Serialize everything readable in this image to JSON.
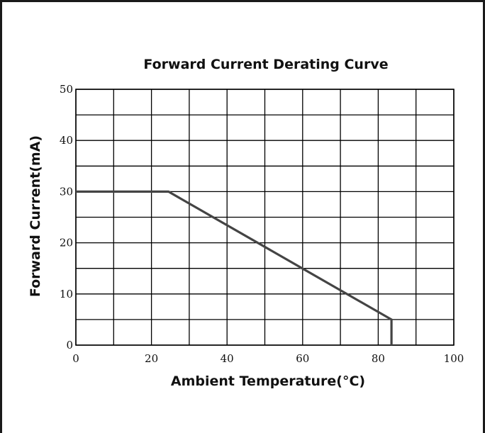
{
  "chart_data": {
    "type": "line",
    "title": "Forward Current Derating Curve",
    "xlabel": "Ambient Temperature(°C)",
    "ylabel": "Forward Current(mA)",
    "xlim": [
      0,
      100
    ],
    "ylim": [
      0,
      50
    ],
    "x_ticks": [
      "0",
      "20",
      "40",
      "60",
      "80",
      "100"
    ],
    "y_ticks": [
      "0",
      "10",
      "20",
      "30",
      "40",
      "50"
    ],
    "x_grid_step": 10,
    "y_grid_step": 5,
    "grid": true,
    "series": [
      {
        "x": [
          0,
          24.5,
          83.5,
          83.5
        ],
        "y": [
          30,
          30,
          5,
          0
        ]
      }
    ],
    "colors": {
      "line": "#444444",
      "grid": "#000000",
      "text": "#111111"
    }
  }
}
